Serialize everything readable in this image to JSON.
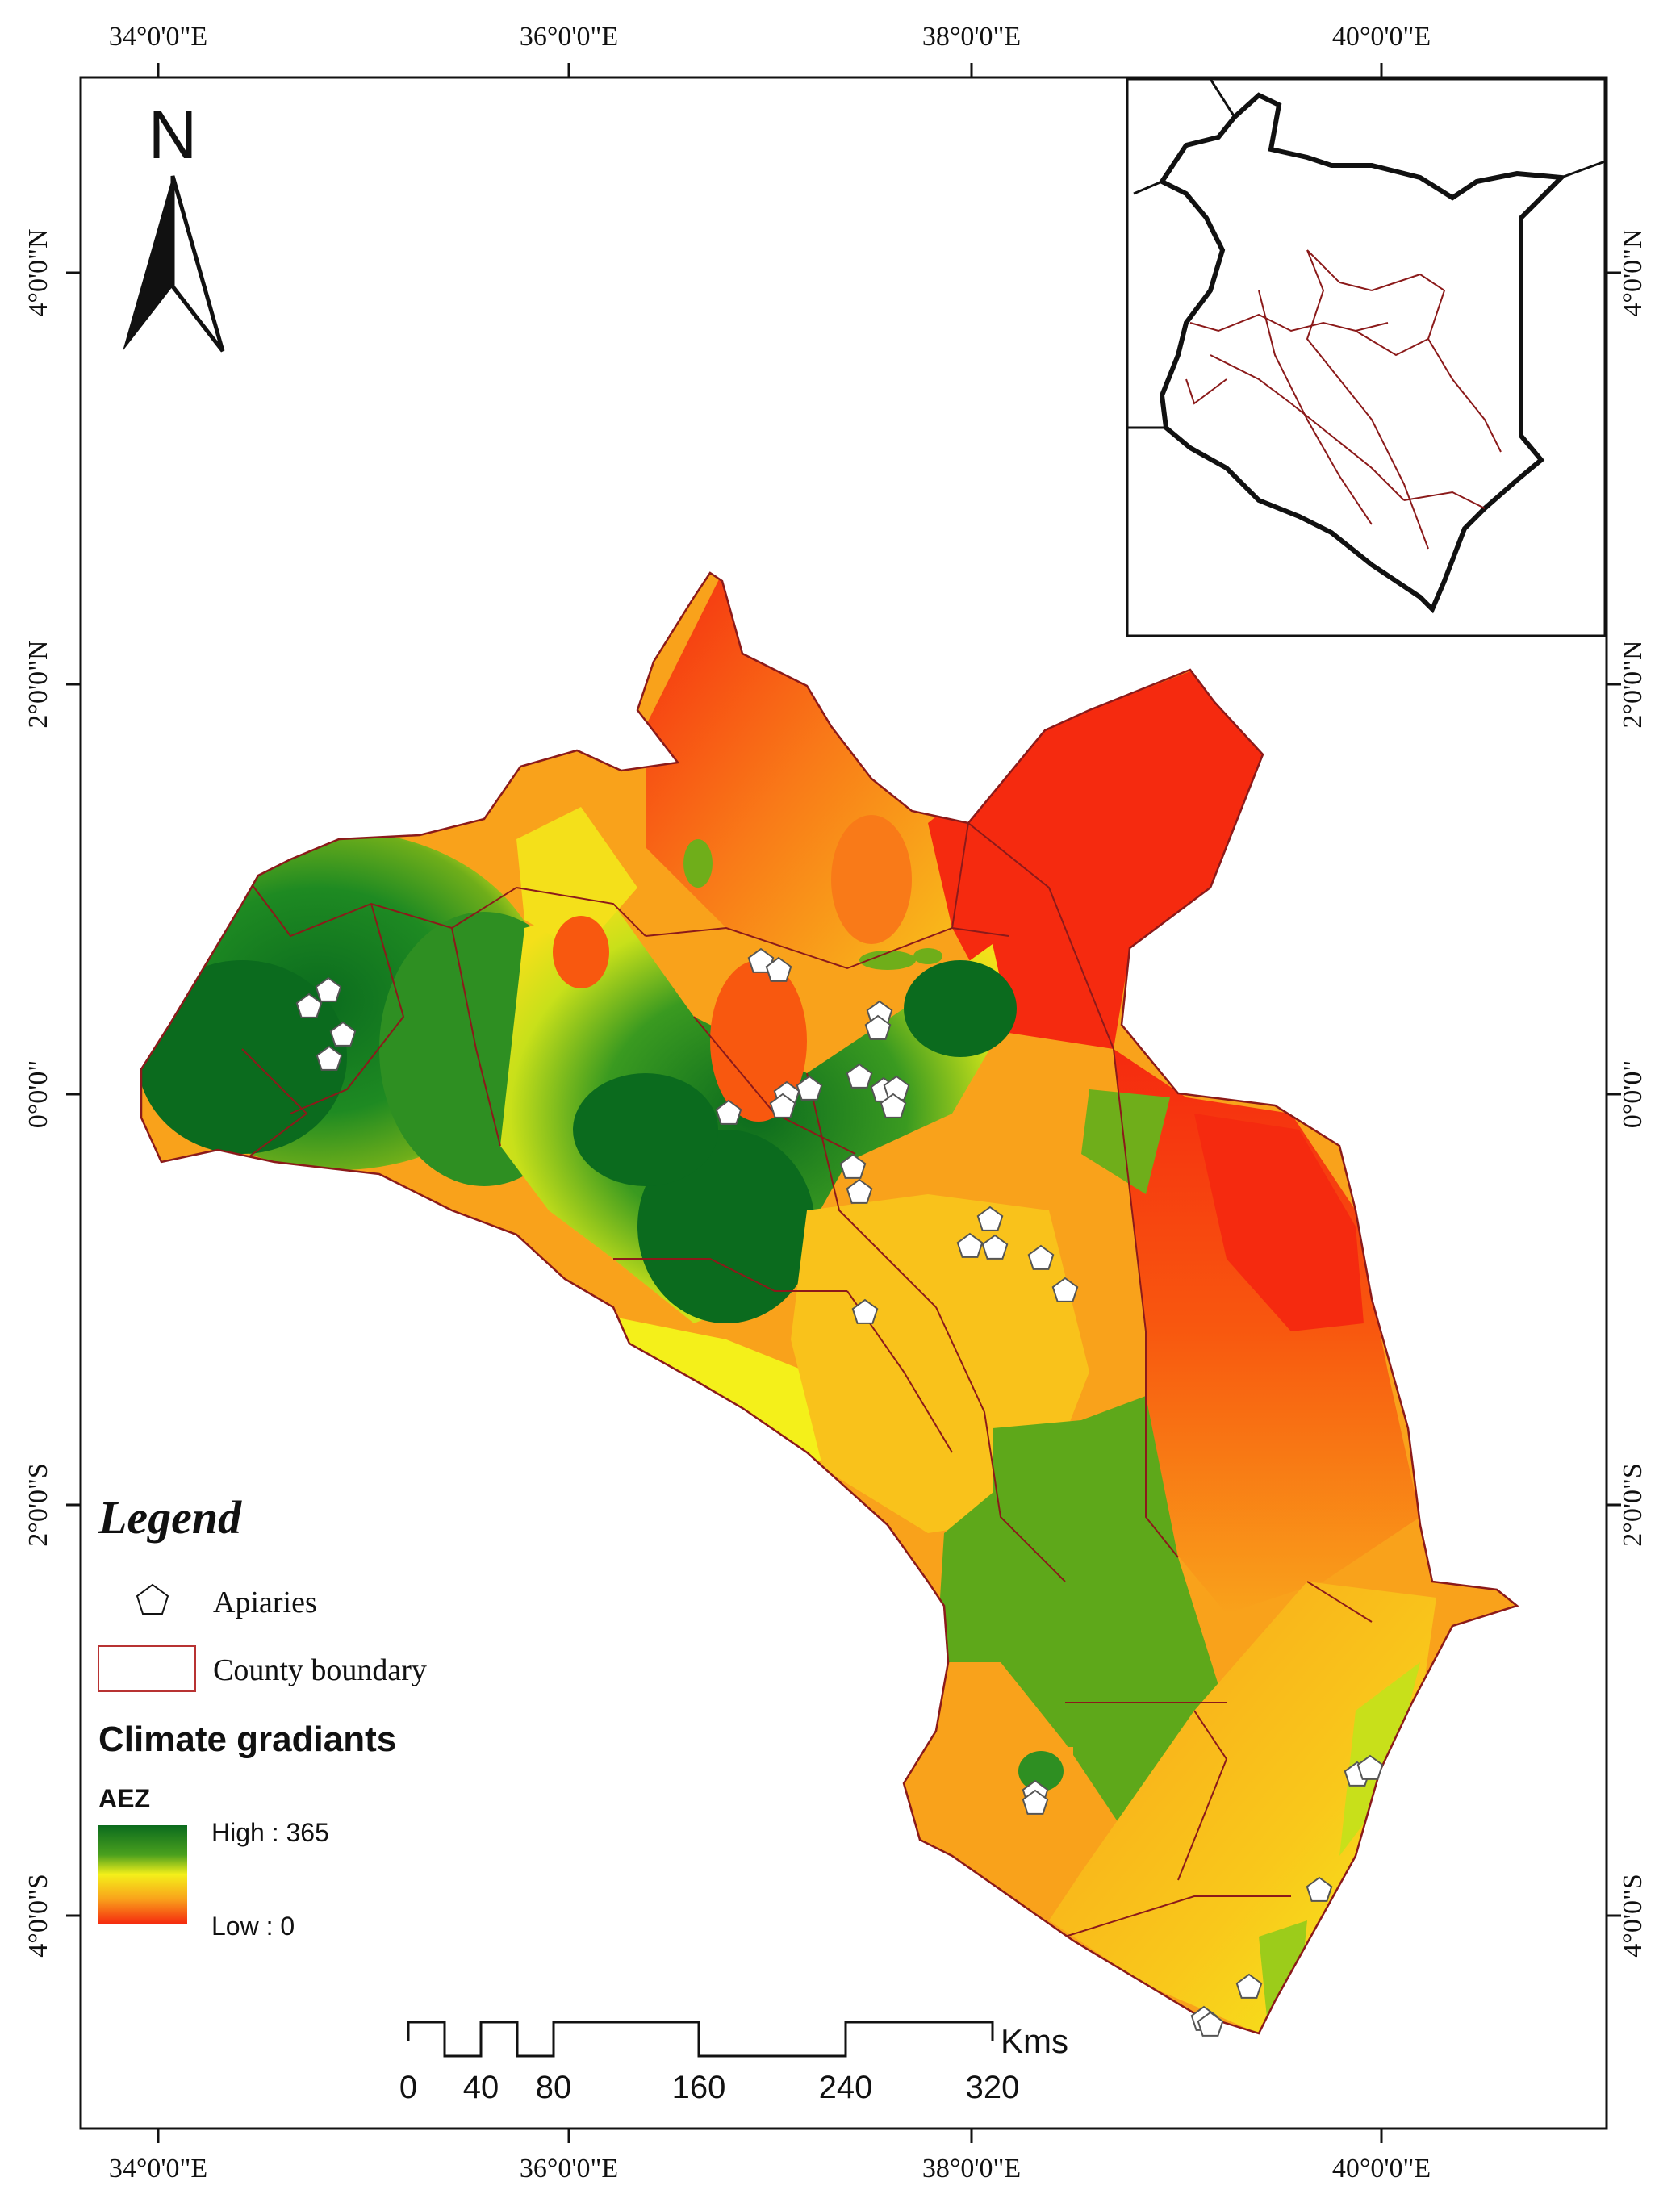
{
  "graticule": {
    "lon_labels": [
      "34°0'0\"E",
      "36°0'0\"E",
      "38°0'0\"E",
      "40°0'0\"E"
    ],
    "lat_labels": [
      "4°0'0\"N",
      "2°0'0\"N",
      "0°0'0\"",
      "2°0'0\"S",
      "4°0'0\"S"
    ]
  },
  "north_arrow": {
    "label": "N"
  },
  "legend": {
    "title": "Legend",
    "apiaries_label": "Apiaries",
    "county_boundary_label": "County boundary",
    "climate_title": "Climate gradiants",
    "aez_title": "AEZ",
    "high_label": "High : 365",
    "low_label": "Low : 0"
  },
  "scale_bar": {
    "unit": "Kms",
    "ticks": [
      "0",
      "40",
      "80",
      "160",
      "240",
      "320"
    ]
  },
  "colors": {
    "high": "#0b6b1e",
    "mid_green": "#6fae1a",
    "yellow": "#f4f01a",
    "orange": "#f9a21b",
    "red": "#f52a0f",
    "county_boundary": "#8b1a1a"
  }
}
